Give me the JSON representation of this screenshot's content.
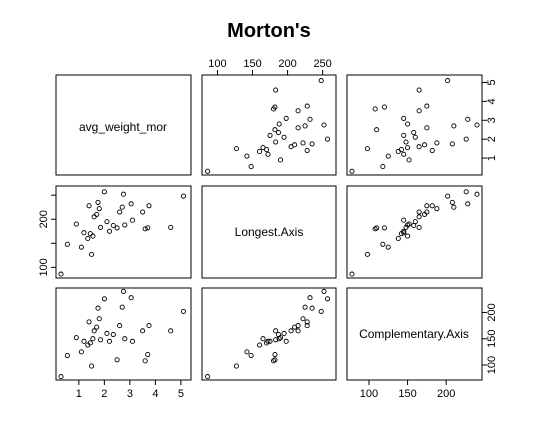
{
  "chart_data": {
    "type": "scatter",
    "subtype": "scatterplot-matrix",
    "title": "Morton's",
    "variables": [
      "avg_weight_mor",
      "Longest.Axis",
      "Complementary.Axis"
    ],
    "ranges": {
      "avg_weight_mor": [
        0.3,
        5.2
      ],
      "Longest.Axis": [
        85,
        262
      ],
      "Complementary.Axis": [
        78,
        240
      ]
    },
    "ticks": {
      "avg_weight_mor": [
        1,
        2,
        3,
        4,
        5
      ],
      "Longest.Axis": [
        100,
        150,
        200,
        250
      ],
      "Complementary.Axis": [
        100,
        150,
        200
      ]
    },
    "tick_labels": {
      "top": [
        "100",
        "150",
        "200",
        "250"
      ],
      "right": [
        "1",
        "2",
        "3",
        "4",
        "5"
      ],
      "left": [
        "100",
        "200"
      ],
      "bottom": [
        "1",
        "2",
        "3",
        "4",
        "5"
      ],
      "bottom_right": [
        "100",
        "150",
        "200"
      ],
      "right_bottom": [
        "100",
        "150",
        "200"
      ]
    },
    "observations": [
      {
        "avg_weight_mor": 0.3,
        "Longest.Axis": 86,
        "Complementary.Axis": 78
      },
      {
        "avg_weight_mor": 0.55,
        "Longest.Axis": 148,
        "Complementary.Axis": 118
      },
      {
        "avg_weight_mor": 0.9,
        "Longest.Axis": 190,
        "Complementary.Axis": 152
      },
      {
        "avg_weight_mor": 1.1,
        "Longest.Axis": 142,
        "Complementary.Axis": 125
      },
      {
        "avg_weight_mor": 1.2,
        "Longest.Axis": 172,
        "Complementary.Axis": 145
      },
      {
        "avg_weight_mor": 1.35,
        "Longest.Axis": 160,
        "Complementary.Axis": 138
      },
      {
        "avg_weight_mor": 1.4,
        "Longest.Axis": 228,
        "Complementary.Axis": 182
      },
      {
        "avg_weight_mor": 1.45,
        "Longest.Axis": 170,
        "Complementary.Axis": 142
      },
      {
        "avg_weight_mor": 1.5,
        "Longest.Axis": 127,
        "Complementary.Axis": 98
      },
      {
        "avg_weight_mor": 1.55,
        "Longest.Axis": 165,
        "Complementary.Axis": 150
      },
      {
        "avg_weight_mor": 1.6,
        "Longest.Axis": 205,
        "Complementary.Axis": 165
      },
      {
        "avg_weight_mor": 1.7,
        "Longest.Axis": 210,
        "Complementary.Axis": 172
      },
      {
        "avg_weight_mor": 1.75,
        "Longest.Axis": 235,
        "Complementary.Axis": 208
      },
      {
        "avg_weight_mor": 1.8,
        "Longest.Axis": 222,
        "Complementary.Axis": 188
      },
      {
        "avg_weight_mor": 1.85,
        "Longest.Axis": 183,
        "Complementary.Axis": 148
      },
      {
        "avg_weight_mor": 2.0,
        "Longest.Axis": 257,
        "Complementary.Axis": 226
      },
      {
        "avg_weight_mor": 2.1,
        "Longest.Axis": 195,
        "Complementary.Axis": 160
      },
      {
        "avg_weight_mor": 2.2,
        "Longest.Axis": 175,
        "Complementary.Axis": 145
      },
      {
        "avg_weight_mor": 2.35,
        "Longest.Axis": 187,
        "Complementary.Axis": 158
      },
      {
        "avg_weight_mor": 2.5,
        "Longest.Axis": 182,
        "Complementary.Axis": 110
      },
      {
        "avg_weight_mor": 2.6,
        "Longest.Axis": 215,
        "Complementary.Axis": 175
      },
      {
        "avg_weight_mor": 2.7,
        "Longest.Axis": 225,
        "Complementary.Axis": 210
      },
      {
        "avg_weight_mor": 2.75,
        "Longest.Axis": 252,
        "Complementary.Axis": 240
      },
      {
        "avg_weight_mor": 2.8,
        "Longest.Axis": 188,
        "Complementary.Axis": 150
      },
      {
        "avg_weight_mor": 3.05,
        "Longest.Axis": 232,
        "Complementary.Axis": 228
      },
      {
        "avg_weight_mor": 3.1,
        "Longest.Axis": 198,
        "Complementary.Axis": 145
      },
      {
        "avg_weight_mor": 3.5,
        "Longest.Axis": 215,
        "Complementary.Axis": 165
      },
      {
        "avg_weight_mor": 3.6,
        "Longest.Axis": 180,
        "Complementary.Axis": 108
      },
      {
        "avg_weight_mor": 3.7,
        "Longest.Axis": 182,
        "Complementary.Axis": 120
      },
      {
        "avg_weight_mor": 3.75,
        "Longest.Axis": 228,
        "Complementary.Axis": 175
      },
      {
        "avg_weight_mor": 4.6,
        "Longest.Axis": 183,
        "Complementary.Axis": 165
      },
      {
        "avg_weight_mor": 5.1,
        "Longest.Axis": 248,
        "Complementary.Axis": 202
      }
    ]
  }
}
